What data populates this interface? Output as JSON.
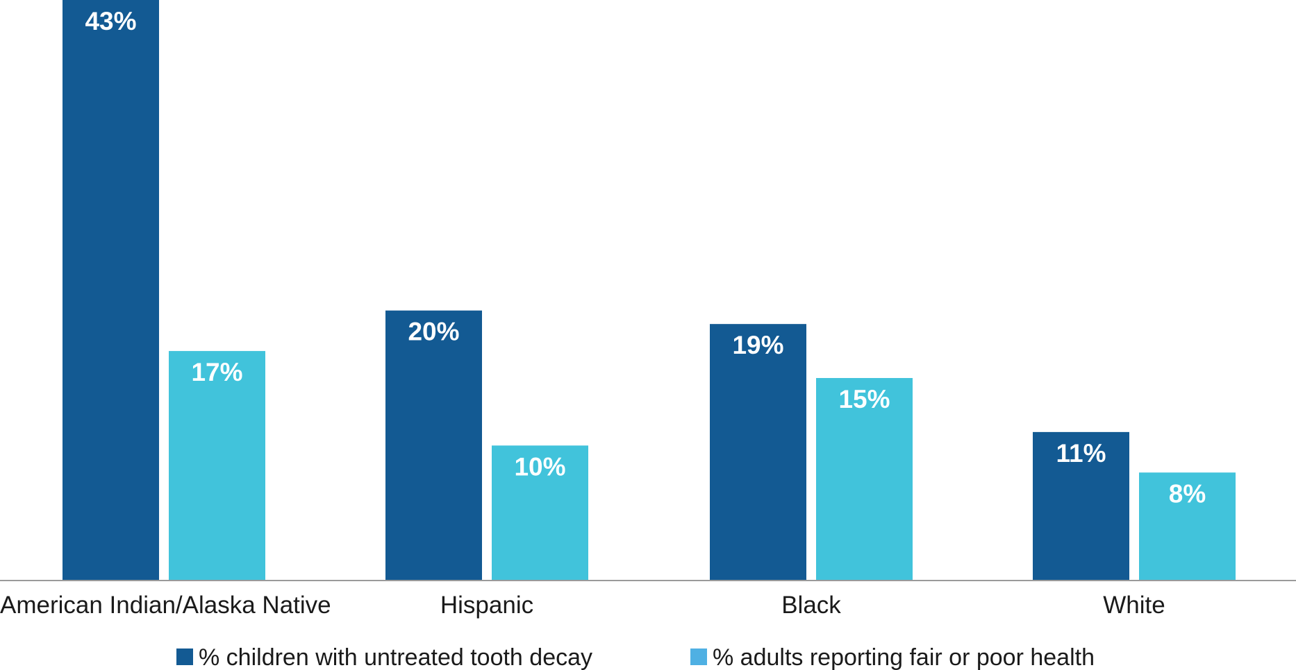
{
  "chart_data": {
    "type": "bar",
    "categories": [
      "American Indian/Alaska Native",
      "Hispanic",
      "Black",
      "White"
    ],
    "series": [
      {
        "name": "% children with untreated tooth decay",
        "color": "#135a93",
        "values": [
          43,
          20,
          19,
          11
        ],
        "labels": [
          "43%",
          "20%",
          "19%",
          "11%"
        ]
      },
      {
        "name": "% adults reporting fair or poor health",
        "color": "#41c3db",
        "values": [
          17,
          10,
          15,
          8
        ],
        "labels": [
          "17%",
          "10%",
          "15%",
          "8%"
        ]
      }
    ],
    "legend_colors": [
      "#135a93",
      "#4fb0e3"
    ],
    "axis_color": "#9a9a9a",
    "ylim": [
      0,
      43
    ],
    "grid": false,
    "legend_position": "bottom"
  }
}
